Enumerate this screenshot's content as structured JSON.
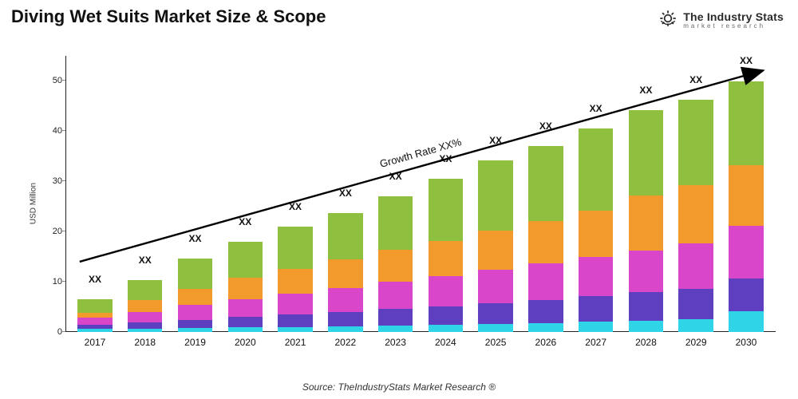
{
  "title": "Diving Wet Suits Market Size & Scope",
  "logo": {
    "main": "The Industry Stats",
    "sub": "market research"
  },
  "chart": {
    "type": "stacked-bar",
    "ylabel": "USD Million",
    "ylim": [
      0,
      55
    ],
    "yticks": [
      0,
      10,
      20,
      30,
      40,
      50
    ],
    "categories": [
      "2017",
      "2018",
      "2019",
      "2020",
      "2021",
      "2022",
      "2023",
      "2024",
      "2025",
      "2026",
      "2027",
      "2028",
      "2029",
      "2030"
    ],
    "bar_top_label": "XX",
    "segment_colors": [
      "#2fd4e6",
      "#5d3fbf",
      "#d946c9",
      "#f29b2c",
      "#8fbf3f"
    ],
    "series": [
      [
        0.6,
        0.7,
        0.8,
        0.9,
        1.0,
        1.1,
        1.3,
        1.4,
        1.6,
        1.8,
        2.0,
        2.3,
        2.6,
        4.2
      ],
      [
        0.8,
        1.2,
        1.6,
        2.1,
        2.5,
        2.9,
        3.3,
        3.7,
        4.2,
        4.6,
        5.1,
        5.6,
        6.0,
        6.5
      ],
      [
        1.4,
        2.1,
        3.0,
        3.6,
        4.2,
        4.8,
        5.4,
        6.0,
        6.6,
        7.2,
        7.8,
        8.4,
        9.0,
        10.5
      ],
      [
        1.1,
        2.4,
        3.2,
        4.2,
        4.8,
        5.6,
        6.3,
        7.0,
        7.8,
        8.5,
        9.3,
        10.9,
        11.6,
        12.0
      ],
      [
        2.6,
        4.0,
        6.0,
        7.2,
        8.5,
        9.3,
        10.7,
        12.4,
        14.0,
        14.9,
        16.3,
        17.0,
        17.0,
        16.8
      ]
    ],
    "growth_rate_text": "Growth Rate XX%",
    "arrow": {
      "x1_pct": 2,
      "y1_val": 14,
      "x2_pct": 98,
      "y2_val": 52
    },
    "background_color": "#ffffff",
    "axis_color": "#222222",
    "label_fontsize": 12,
    "title_fontsize": 22,
    "bar_width_pct": 70
  },
  "source": "Source: TheIndustryStats Market Research ®"
}
